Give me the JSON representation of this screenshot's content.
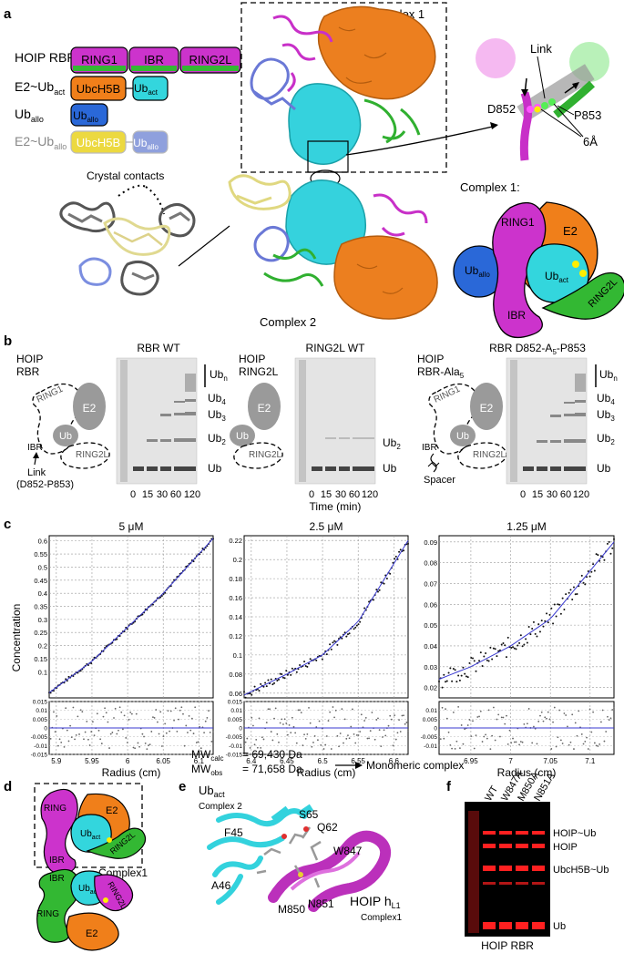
{
  "panel_letters": {
    "a": "a",
    "b": "b",
    "c": "c",
    "d": "d",
    "e": "e",
    "f": "f"
  },
  "panel_a": {
    "construct_names": [
      "HOIP RBR",
      "E2~Ub",
      "Ub",
      "E2~Ub"
    ],
    "construct_subs": [
      "",
      "act",
      "allo",
      "allo"
    ],
    "domains": {
      "ring1": "RING1",
      "ibr": "IBR",
      "ring2l": "RING2L",
      "ubch5b": "UbcH5B",
      "ub": "Ub",
      "act": "act",
      "allo": "allo"
    },
    "complex1_label": "Complex 1",
    "complex2_label": "Complex 2",
    "crystal_contacts": "Crystal contacts",
    "zoom_labels": {
      "link": "Link",
      "d852": "D852",
      "p853": "P853",
      "dist": "6Å"
    },
    "schematic_title": "Complex 1:",
    "schematic": {
      "ring1": "RING1",
      "e2": "E2",
      "ub": "Ub",
      "allo": "allo",
      "act": "act",
      "ibr": "IBR",
      "ring2l": "RING2L"
    }
  },
  "panel_b": {
    "cartoons": [
      {
        "title1": "HOIP",
        "title2": "RBR",
        "ring1": "RING1",
        "e2": "E2",
        "ub": "Ub",
        "ibr": "IBR",
        "ring2l": "RING2L",
        "note1": "Link",
        "note2": "(D852-P853)"
      },
      {
        "title1": "HOIP",
        "title2": "RING2L",
        "e2": "E2",
        "ub": "Ub",
        "ring2l": "RING2L"
      },
      {
        "title1": "HOIP",
        "title2": "RBR-Ala",
        "title2_sub": "5",
        "ring1": "RING1",
        "e2": "E2",
        "ub": "Ub",
        "ibr": "IBR",
        "ring2l": "RING2L",
        "note1": "Spacer"
      }
    ],
    "gels": [
      {
        "title": "RBR WT",
        "lanes": [
          "0",
          "15",
          "30",
          "60",
          "120"
        ],
        "bands": [
          "Ub",
          "Ub",
          "Ub",
          "Ub"
        ],
        "band_subs": [
          "n",
          "4",
          "3",
          "2"
        ]
      },
      {
        "title": "RING2L WT",
        "lanes": [
          "0",
          "15",
          "30",
          "60",
          "120"
        ],
        "bands": [
          "Ub"
        ],
        "band_subs": [
          "2"
        ]
      },
      {
        "title": "RBR D852-A",
        "title_sub": "5",
        "title_tail": "-P853",
        "lanes": [
          "0",
          "15",
          "30",
          "60",
          "120"
        ],
        "bands": [
          "Ub",
          "Ub",
          "Ub",
          "Ub"
        ],
        "band_subs": [
          "n",
          "4",
          "3",
          "2"
        ]
      }
    ],
    "ub_label": "Ub",
    "time_label": "Time (min)"
  },
  "panel_c": {
    "ylabel": "Concentration",
    "mw_calc_label": "MW",
    "mw_calc_sub": "calc",
    "mw_calc_value": "= 69,430 Da",
    "mw_obs_label": "MW",
    "mw_obs_sub": "obs",
    "mw_obs_value": "= 71,658 Da",
    "conclusion": "Monomeric complex"
  },
  "chart_data": [
    {
      "type": "scatter",
      "title": "5 μM",
      "xlabel": "Radius (cm)",
      "ylabel": "Concentration",
      "xlim": [
        5.89,
        6.12
      ],
      "ylim": [
        0.0,
        0.62
      ],
      "xticks": [
        "5.9",
        "5.95",
        "6",
        "6.05",
        "6.1"
      ],
      "yticks": [
        "0.1",
        "0.15",
        "0.2",
        "0.25",
        "0.3",
        "0.35",
        "0.4",
        "0.45",
        "0.5",
        "0.55",
        "0.6"
      ],
      "fit": {
        "x": [
          5.89,
          5.95,
          6.0,
          6.05,
          6.12
        ],
        "y": [
          0.02,
          0.14,
          0.27,
          0.4,
          0.61
        ]
      },
      "residual_ylim": [
        -0.015,
        0.015
      ],
      "residual_yticks": [
        "0.015",
        "0.01",
        "0.005",
        "0",
        "-0.005",
        "-0.01",
        "-0.015"
      ],
      "grid": true
    },
    {
      "type": "scatter",
      "title": "2.5 μM",
      "xlabel": "Radius (cm)",
      "ylabel": "",
      "xlim": [
        6.39,
        6.62
      ],
      "ylim": [
        0.055,
        0.225
      ],
      "xticks": [
        "6.4",
        "6.45",
        "6.5",
        "6.55",
        "6.6"
      ],
      "yticks": [
        "0.06",
        "0.08",
        "0.1",
        "0.12",
        "0.14",
        "0.16",
        "0.18",
        "0.2",
        "0.22"
      ],
      "fit": {
        "x": [
          6.39,
          6.45,
          6.5,
          6.55,
          6.62
        ],
        "y": [
          0.058,
          0.08,
          0.1,
          0.135,
          0.22
        ]
      },
      "residual_ylim": [
        -0.015,
        0.015
      ],
      "residual_yticks": [
        "0.015",
        "0.01",
        "0.005",
        "0",
        "-0.005",
        "-0.01",
        "-0.015"
      ],
      "grid": true
    },
    {
      "type": "scatter",
      "title": "1.25 μM",
      "xlabel": "Radius (cm)",
      "ylabel": "",
      "xlim": [
        6.91,
        7.13
      ],
      "ylim": [
        0.015,
        0.093
      ],
      "xticks": [
        "6.95",
        "7",
        "7.05",
        "7.1"
      ],
      "yticks": [
        "0.02",
        "0.03",
        "0.04",
        "0.05",
        "0.06",
        "0.07",
        "0.08",
        "0.09"
      ],
      "fit": {
        "x": [
          6.91,
          6.95,
          7.0,
          7.05,
          7.13
        ],
        "y": [
          0.024,
          0.03,
          0.04,
          0.053,
          0.09
        ]
      },
      "residual_ylim": [
        -0.015,
        0.015
      ],
      "residual_yticks": [
        "0.01",
        "0.005",
        "0",
        "-0.005",
        "-0.01"
      ],
      "grid": true
    }
  ],
  "panel_d": {
    "ring": "RING",
    "e2": "E2",
    "ub": "Ub",
    "act": "act",
    "ibr": "IBR",
    "ring2l": "RING2L",
    "complex1": "Complex1"
  },
  "panel_e": {
    "ub_title": "Ub",
    "ub_sub": "act",
    "complex2": "Complex 2",
    "residues": [
      "S65",
      "Q62",
      "F45",
      "W847",
      "A46",
      "M850",
      "N851"
    ],
    "hoip_title": "HOIP h",
    "hoip_sub": "L1",
    "complex1": "Complex1"
  },
  "panel_f": {
    "lanes": [
      "WT",
      "W847A",
      "M850A",
      "N851A"
    ],
    "bands": [
      "HOIP~Ub",
      "HOIP",
      "UbcH5B~Ub",
      "Ub"
    ],
    "footer": "HOIP RBR"
  },
  "colors": {
    "magenta": "#cc33cc",
    "green": "#33b833",
    "orange": "#f07f1a",
    "cyan": "#33d6dd",
    "blue": "#2a68d8",
    "yellow": "#e8d83a",
    "pale_yellow": "#efe8a0",
    "pale_blue": "#8fa0dd",
    "grey": "#909090",
    "fit_line": "#3a3ad0",
    "gel_red": "#ff2020"
  }
}
